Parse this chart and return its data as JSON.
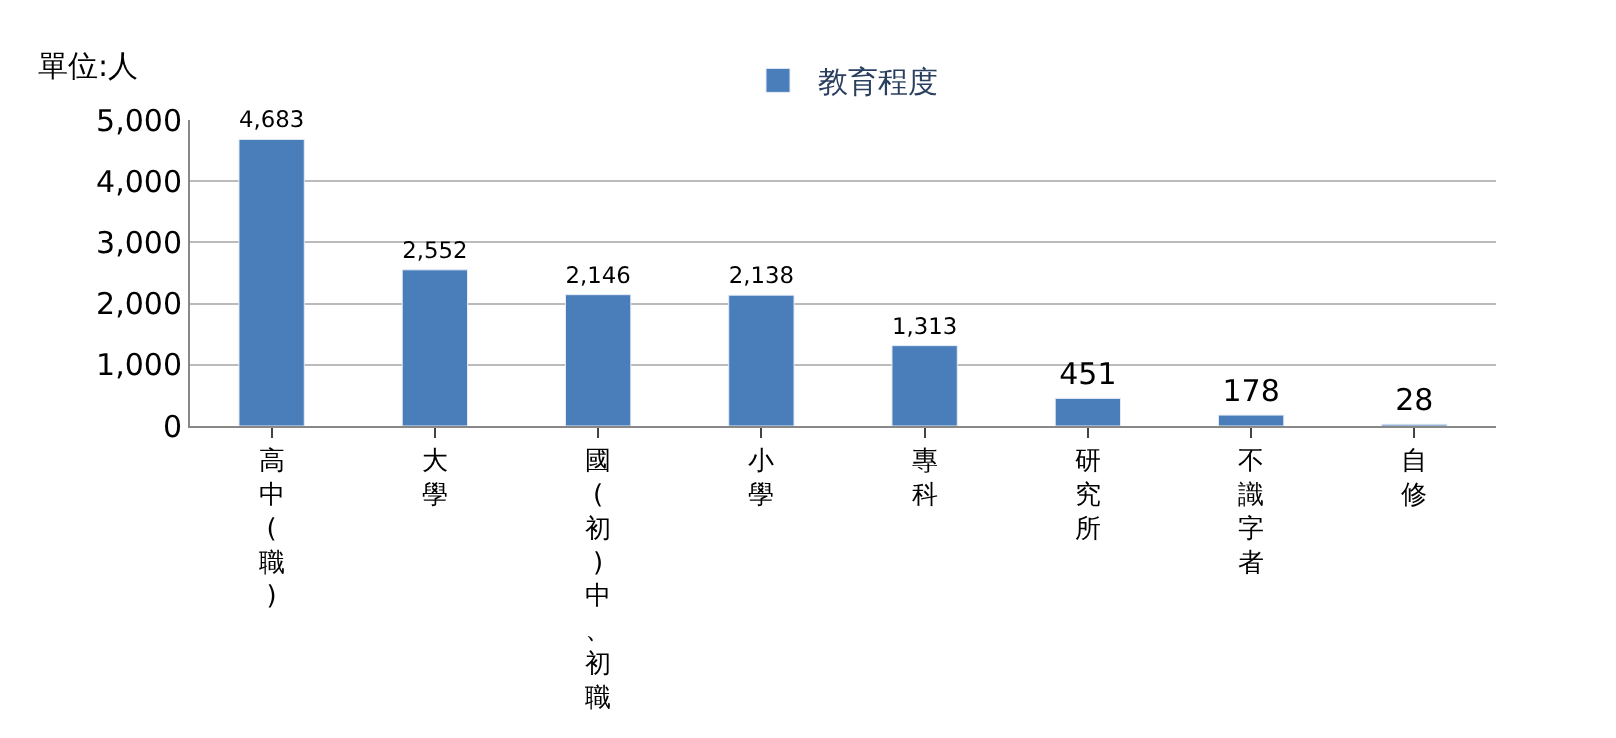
{
  "chart_data": {
    "type": "bar",
    "ylabel": "單位:人",
    "categories": [
      "高中(職)",
      "大學",
      "國(初)中、初職",
      "小學",
      "專科",
      "研究所",
      "不識字者",
      "自修"
    ],
    "series": [
      {
        "name": "教育程度",
        "color": "#4a7ebb",
        "values": [
          4683,
          2552,
          2146,
          2138,
          1313,
          451,
          178,
          28
        ]
      }
    ],
    "ylim": [
      0,
      5000
    ],
    "yticks": [
      {
        "value": 0,
        "label": "0"
      },
      {
        "value": 1000,
        "label": "1,000"
      },
      {
        "value": 2000,
        "label": "2,000"
      },
      {
        "value": 3000,
        "label": "3,000"
      },
      {
        "value": 4000,
        "label": "4,000"
      },
      {
        "value": 5000,
        "label": "5,000"
      }
    ],
    "value_labels": [
      "4,683",
      "2,552",
      "2,146",
      "2,138",
      "1,313",
      "451",
      "178",
      "28"
    ],
    "grid": "y",
    "legend": "top"
  }
}
